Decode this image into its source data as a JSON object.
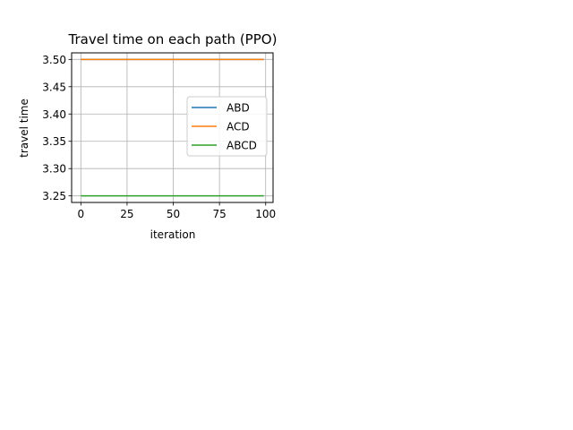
{
  "chart_data": {
    "type": "line",
    "title": "Travel time on each path (PPO)",
    "xlabel": "iteration",
    "ylabel": "travel time",
    "xlim": [
      -5,
      104
    ],
    "ylim": [
      3.238,
      3.512
    ],
    "xticks": [
      0,
      25,
      50,
      75,
      100
    ],
    "xtick_labels": [
      "0",
      "25",
      "50",
      "75",
      "100"
    ],
    "yticks": [
      3.25,
      3.3,
      3.35,
      3.4,
      3.45,
      3.5
    ],
    "ytick_labels": [
      "3.25",
      "3.30",
      "3.35",
      "3.40",
      "3.45",
      "3.50"
    ],
    "grid": true,
    "legend_position": "center-right",
    "x": [
      0,
      99
    ],
    "series": [
      {
        "name": "ABD",
        "color": "#1f77b4",
        "values": [
          3.5,
          3.5
        ]
      },
      {
        "name": "ACD",
        "color": "#ff7f0e",
        "values": [
          3.5,
          3.5
        ]
      },
      {
        "name": "ABCD",
        "color": "#2ca02c",
        "values": [
          3.25,
          3.25
        ]
      }
    ]
  }
}
